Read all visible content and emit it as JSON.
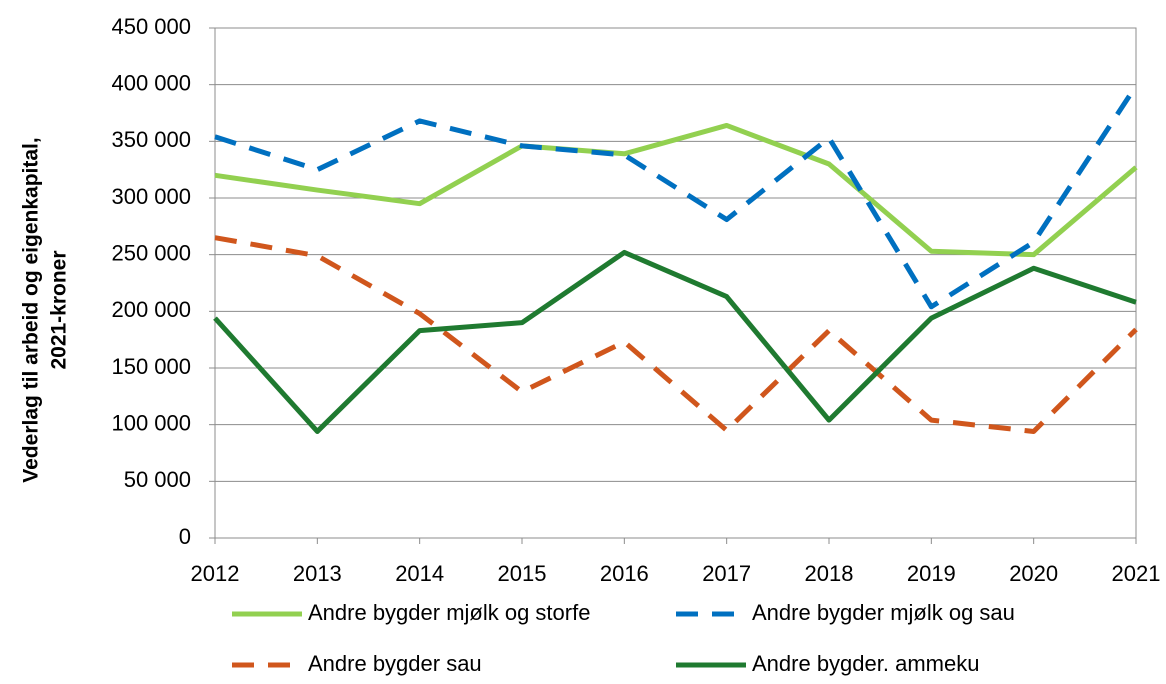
{
  "chart_data": {
    "type": "line",
    "ylabel": [
      "Vederlag til arbeid og eigenkapital,",
      "2021-kroner"
    ],
    "categories": [
      "2012",
      "2013",
      "2014",
      "2015",
      "2016",
      "2017",
      "2018",
      "2019",
      "2020",
      "2021"
    ],
    "series": [
      {
        "name": "Andre bygder mjølk og storfe",
        "color": "#92d050",
        "dashed": false,
        "values": [
          320000,
          307000,
          295000,
          346000,
          339000,
          364000,
          330000,
          253000,
          250000,
          327000
        ]
      },
      {
        "name": "Andre bygder mjølk og sau",
        "color": "#0070c0",
        "dashed": true,
        "values": [
          354000,
          325000,
          368000,
          346000,
          338000,
          281000,
          353000,
          204000,
          261000,
          399000
        ]
      },
      {
        "name": "Andre bygder sau",
        "color": "#d0561c",
        "dashed": true,
        "values": [
          265000,
          249000,
          198000,
          129000,
          173000,
          95000,
          183000,
          104000,
          94000,
          184000
        ]
      },
      {
        "name": "Andre bygder. ammeku",
        "color": "#1f7a30",
        "dashed": false,
        "values": [
          194000,
          94000,
          183000,
          190000,
          252000,
          213000,
          104000,
          194000,
          238000,
          208000
        ]
      }
    ],
    "ylim": [
      0,
      450000
    ],
    "yticks": [
      0,
      {
        "value": 50000,
        "label": "50 000"
      },
      {
        "value": 100000,
        "label": "100 000"
      },
      {
        "value": 150000,
        "label": "150 000"
      },
      {
        "value": 200000,
        "label": "200 000"
      },
      {
        "value": 250000,
        "label": "250 000"
      },
      {
        "value": 300000,
        "label": "300 000"
      },
      {
        "value": 350000,
        "label": "350 000"
      },
      {
        "value": 400000,
        "label": "400 000"
      },
      {
        "value": 450000,
        "label": "450 000"
      }
    ],
    "grid": true
  }
}
